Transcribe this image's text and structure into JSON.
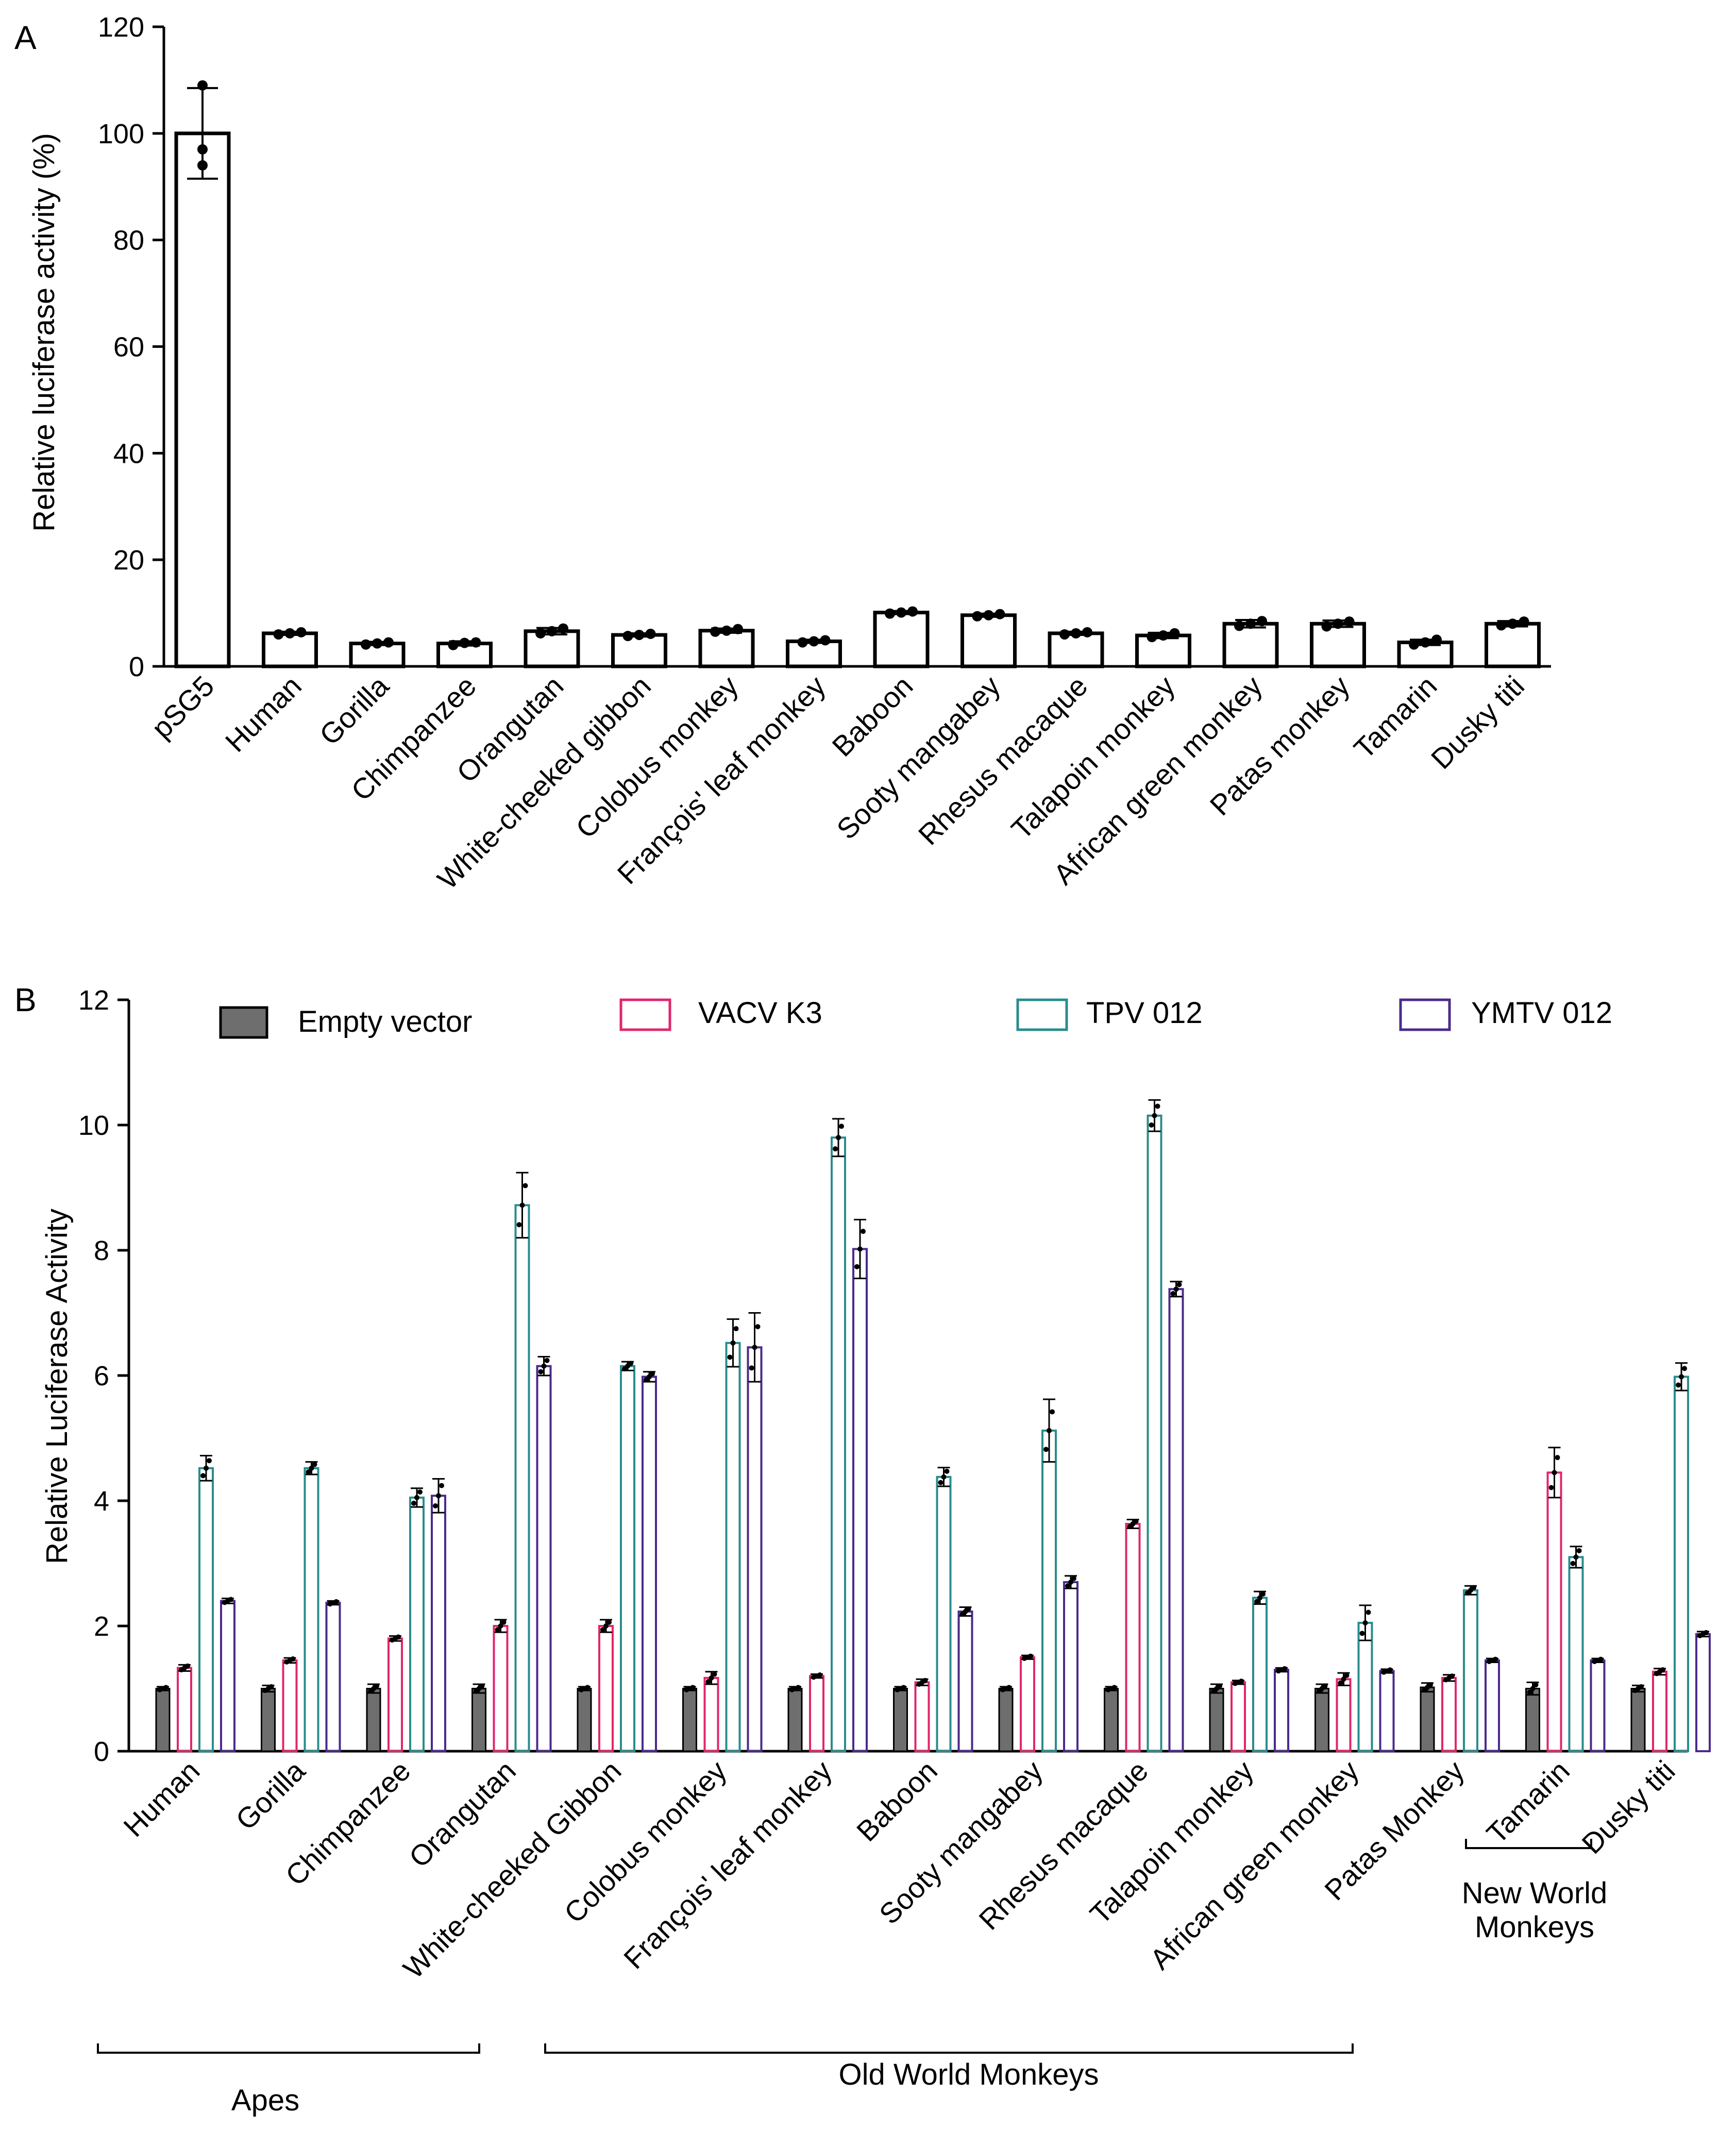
{
  "chart_data": [
    {
      "panel": "A",
      "type": "bar",
      "title": "",
      "xlabel": "",
      "ylabel": "Relative luciferase activity (%)",
      "ylim": [
        0,
        120
      ],
      "yticks": [
        "0",
        "20",
        "40",
        "60",
        "80",
        "100",
        "120"
      ],
      "categories": [
        "pSG5",
        "Human",
        "Gorilla",
        "Chimpanzee",
        "Orangutan",
        "White-cheeked gibbon",
        "Colobus monkey",
        "François' leaf monkey",
        "Baboon",
        "Sooty mangabey",
        "Rhesus macaque",
        "Talapoin monkey",
        "African green monkey",
        "Patas monkey",
        "Tamarin",
        "Dusky titi"
      ],
      "values": [
        100,
        6.2,
        4.3,
        4.3,
        6.6,
        5.9,
        6.7,
        4.7,
        10.1,
        9.6,
        6.2,
        5.8,
        8.0,
        8.0,
        4.5,
        8.0
      ],
      "errors": [
        8.5,
        0.3,
        0.3,
        0.4,
        0.6,
        0.3,
        0.4,
        0.3,
        0.3,
        0.3,
        0.3,
        0.5,
        0.7,
        0.6,
        0.5,
        0.5
      ],
      "points": [
        [
          109,
          97,
          94
        ],
        [
          6.0,
          6.2,
          6.4
        ],
        [
          4.1,
          4.3,
          4.5
        ],
        [
          4.0,
          4.4,
          4.5
        ],
        [
          6.2,
          6.6,
          7.1
        ],
        [
          5.7,
          5.9,
          6.1
        ],
        [
          6.5,
          6.7,
          7.0
        ],
        [
          4.5,
          4.7,
          4.9
        ],
        [
          9.9,
          10.1,
          10.3
        ],
        [
          9.4,
          9.6,
          9.8
        ],
        [
          6.0,
          6.2,
          6.4
        ],
        [
          5.5,
          5.8,
          6.2
        ],
        [
          7.6,
          8.0,
          8.5
        ],
        [
          7.5,
          8.0,
          8.4
        ],
        [
          4.1,
          4.5,
          5.0
        ],
        [
          7.7,
          8.0,
          8.4
        ]
      ]
    },
    {
      "panel": "B",
      "type": "bar",
      "title": "",
      "xlabel": "",
      "ylabel": "Relative Luciferase Activity",
      "ylim": [
        0,
        12
      ],
      "yticks": [
        "0",
        "2",
        "4",
        "6",
        "8",
        "10",
        "12"
      ],
      "categories": [
        "Human",
        "Gorilla",
        "Chimpanzee",
        "Orangutan",
        "White-cheeked Gibbon",
        "Colobus monkey",
        "François' leaf monkey",
        "Baboon",
        "Sooty mangabey",
        "Rhesus macaque",
        "Talapoin monkey",
        "African green monkey",
        "Patas Monkey",
        "Tamarin",
        "Dusky titi"
      ],
      "series": [
        {
          "name": "Empty vector",
          "color": "#6e6e6e",
          "filled": true,
          "values": [
            1.0,
            1.0,
            1.0,
            1.0,
            1.0,
            1.0,
            1.0,
            1.0,
            1.0,
            1.0,
            1.0,
            1.0,
            1.02,
            1.0,
            1.0
          ],
          "errors": [
            0.03,
            0.05,
            0.07,
            0.07,
            0.03,
            0.03,
            0.03,
            0.03,
            0.03,
            0.03,
            0.07,
            0.07,
            0.07,
            0.1,
            0.05
          ]
        },
        {
          "name": "VACV K3",
          "color": "#e0266c",
          "filled": false,
          "values": [
            1.33,
            1.45,
            1.8,
            2.0,
            2.0,
            1.17,
            1.2,
            1.1,
            1.5,
            3.63,
            1.1,
            1.15,
            1.17,
            4.45,
            1.27
          ],
          "errors": [
            0.05,
            0.04,
            0.04,
            0.1,
            0.1,
            0.1,
            0.03,
            0.05,
            0.03,
            0.07,
            0.03,
            0.1,
            0.05,
            0.4,
            0.05
          ]
        },
        {
          "name": "TPV 012",
          "color": "#2a8c8c",
          "filled": false,
          "values": [
            4.52,
            4.52,
            4.05,
            8.72,
            6.15,
            6.52,
            9.8,
            4.38,
            5.12,
            10.15,
            2.45,
            2.05,
            2.57,
            3.1,
            5.98
          ],
          "errors": [
            0.2,
            0.1,
            0.15,
            0.52,
            0.07,
            0.38,
            0.3,
            0.15,
            0.5,
            0.25,
            0.1,
            0.28,
            0.07,
            0.17,
            0.22
          ]
        },
        {
          "name": "YMTV 012",
          "color": "#4a2a8c",
          "filled": false,
          "values": [
            2.4,
            2.37,
            4.08,
            6.15,
            5.98,
            6.45,
            8.02,
            2.23,
            2.7,
            7.38,
            1.3,
            1.28,
            1.45,
            1.45,
            1.87
          ],
          "errors": [
            0.04,
            0.03,
            0.27,
            0.15,
            0.08,
            0.55,
            0.47,
            0.07,
            0.1,
            0.12,
            0.03,
            0.03,
            0.03,
            0.03,
            0.04
          ]
        }
      ]
    }
  ],
  "panel_labels": {
    "a": "A",
    "b": "B"
  },
  "groups": [
    {
      "label": "Apes"
    },
    {
      "label": "Old World Monkeys"
    },
    {
      "label": "New World\nMonkeys"
    }
  ]
}
